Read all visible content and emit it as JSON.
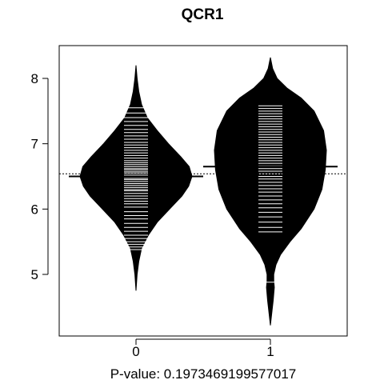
{
  "chart_data": {
    "type": "beanplot",
    "title": "QCR1",
    "xlabel": "P-value: 0.1973469199577017",
    "ylabel": "",
    "categories": [
      "0",
      "1"
    ],
    "ylim": [
      4.2,
      8.45
    ],
    "yticks": [
      5,
      6,
      7,
      8
    ],
    "ytick_labels": [
      "5",
      "6",
      "7",
      "8"
    ],
    "overall_mean": 6.54,
    "colors": {
      "bean": "#000000",
      "lines": "#ffffff",
      "background": "#ffffff"
    },
    "beans": [
      {
        "category": "0",
        "mean": 6.5,
        "range": [
          4.75,
          8.2
        ],
        "density": [
          [
            4.75,
            0.0
          ],
          [
            5.0,
            0.02
          ],
          [
            5.2,
            0.05
          ],
          [
            5.4,
            0.1
          ],
          [
            5.6,
            0.22
          ],
          [
            5.8,
            0.38
          ],
          [
            6.0,
            0.6
          ],
          [
            6.2,
            0.82
          ],
          [
            6.35,
            0.94
          ],
          [
            6.5,
            1.0
          ],
          [
            6.65,
            0.95
          ],
          [
            6.8,
            0.8
          ],
          [
            7.0,
            0.58
          ],
          [
            7.2,
            0.38
          ],
          [
            7.4,
            0.2
          ],
          [
            7.6,
            0.1
          ],
          [
            7.8,
            0.05
          ],
          [
            8.0,
            0.02
          ],
          [
            8.2,
            0.0
          ]
        ],
        "observations": [
          5.38,
          5.42,
          5.46,
          5.5,
          5.55,
          5.6,
          5.66,
          5.72,
          5.78,
          5.85,
          5.9,
          5.96,
          6.03,
          6.08,
          6.12,
          6.16,
          6.2,
          6.24,
          6.28,
          6.3,
          6.33,
          6.36,
          6.39,
          6.42,
          6.45,
          6.47,
          6.5,
          6.52,
          6.55,
          6.57,
          6.6,
          6.62,
          6.65,
          6.68,
          6.71,
          6.74,
          6.78,
          6.82,
          6.86,
          6.9,
          6.94,
          6.98,
          7.02,
          7.07,
          7.12,
          7.17,
          7.22,
          7.28,
          7.34,
          7.4,
          7.47,
          7.55
        ]
      },
      {
        "category": "1",
        "mean": 6.65,
        "range": [
          4.22,
          8.32
        ],
        "density": [
          [
            4.22,
            0.0
          ],
          [
            4.45,
            0.03
          ],
          [
            4.6,
            0.05
          ],
          [
            4.8,
            0.07
          ],
          [
            4.9,
            0.06
          ],
          [
            5.0,
            0.06
          ],
          [
            5.15,
            0.1
          ],
          [
            5.3,
            0.18
          ],
          [
            5.5,
            0.35
          ],
          [
            5.7,
            0.55
          ],
          [
            6.0,
            0.78
          ],
          [
            6.3,
            0.92
          ],
          [
            6.6,
            0.98
          ],
          [
            6.9,
            1.0
          ],
          [
            7.2,
            0.95
          ],
          [
            7.5,
            0.78
          ],
          [
            7.7,
            0.55
          ],
          [
            7.85,
            0.3
          ],
          [
            8.0,
            0.12
          ],
          [
            8.15,
            0.04
          ],
          [
            8.32,
            0.0
          ]
        ],
        "observations": [
          4.88,
          5.65,
          5.72,
          5.8,
          5.88,
          5.95,
          6.02,
          6.08,
          6.14,
          6.2,
          6.26,
          6.31,
          6.36,
          6.41,
          6.46,
          6.5,
          6.54,
          6.58,
          6.62,
          6.66,
          6.7,
          6.74,
          6.78,
          6.82,
          6.86,
          6.9,
          6.94,
          6.98,
          7.02,
          7.06,
          7.1,
          7.14,
          7.18,
          7.22,
          7.26,
          7.3,
          7.34,
          7.38,
          7.42,
          7.46,
          7.5,
          7.54,
          7.58
        ]
      }
    ]
  }
}
